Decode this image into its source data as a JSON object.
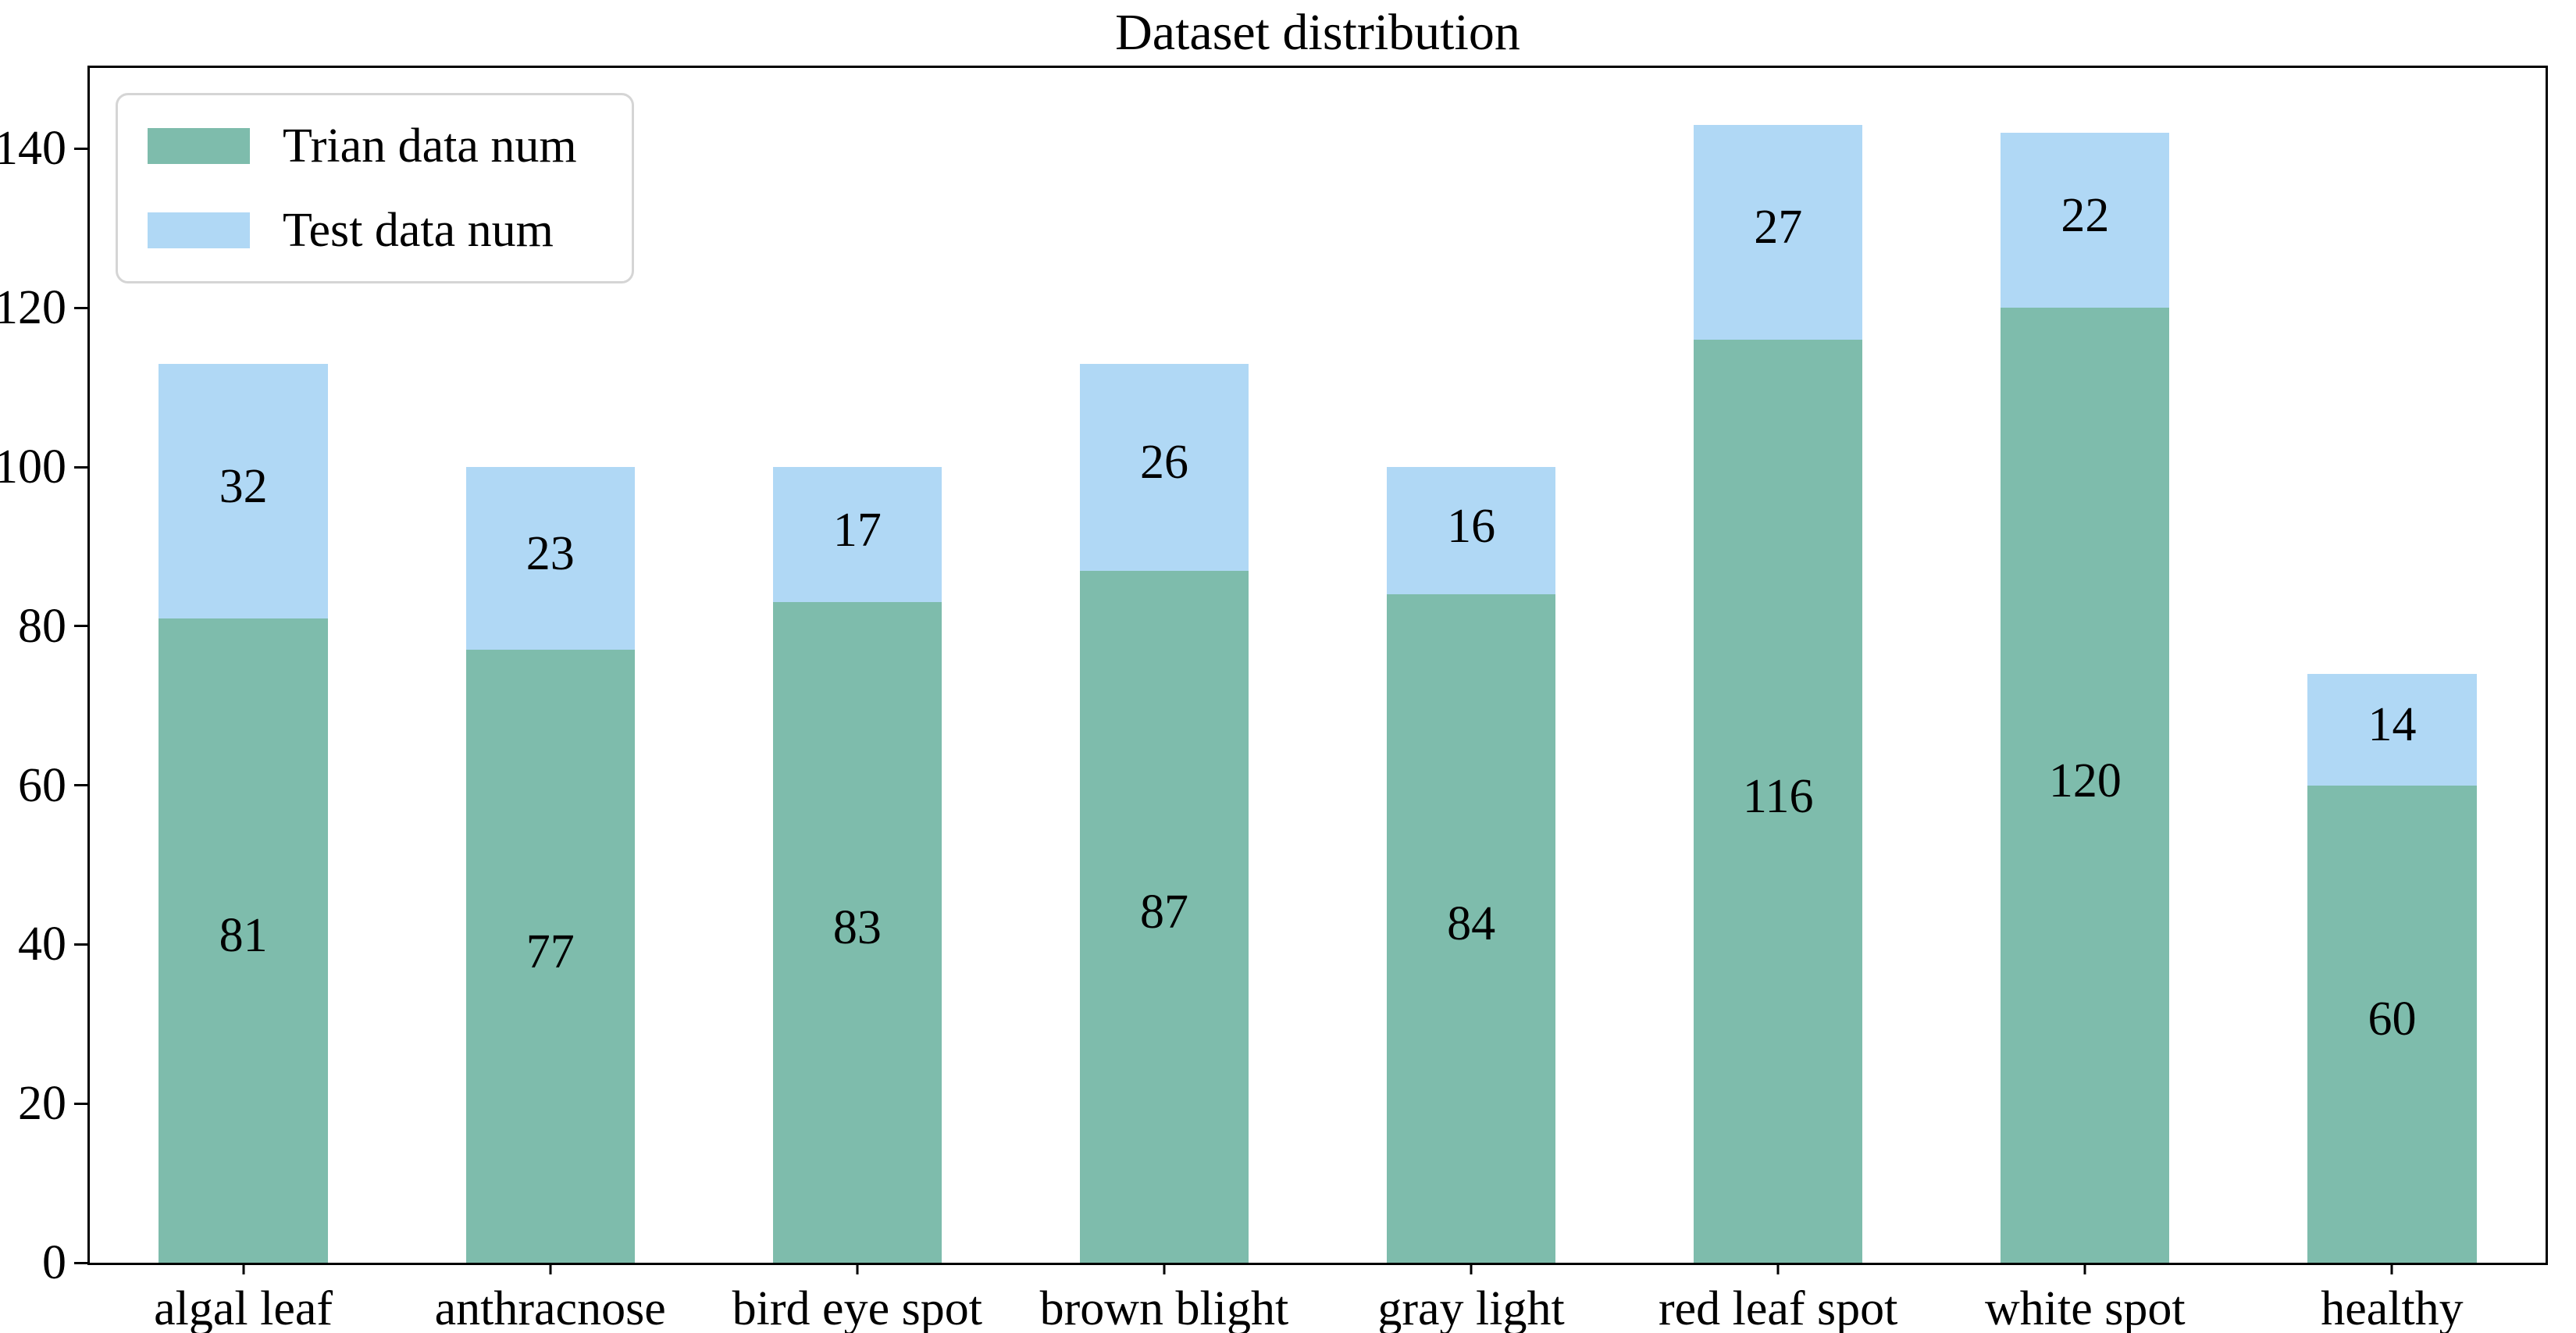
{
  "chart_data": {
    "type": "bar",
    "stacked": true,
    "title": "Dataset distribution",
    "categories": [
      "algal leaf",
      "anthracnose",
      "bird eye spot",
      "brown blight",
      "gray light",
      "red leaf spot",
      "white spot",
      "healthy"
    ],
    "series": [
      {
        "name": "Trian data num",
        "color": "#7ebcac",
        "values": [
          81,
          77,
          83,
          87,
          84,
          116,
          120,
          60
        ]
      },
      {
        "name": "Test data num",
        "color": "#b0d8f5",
        "values": [
          32,
          23,
          17,
          26,
          16,
          27,
          22,
          14
        ]
      }
    ],
    "bar_value_labels": true,
    "xlabel": "",
    "ylabel": "",
    "yticks": [
      0,
      20,
      40,
      60,
      80,
      100,
      120,
      140
    ],
    "ylim": [
      0,
      150.15
    ],
    "legend_position": "upper left",
    "grid": false,
    "colors": {
      "spine": "#000000",
      "text": "#000000",
      "legend_border": "#d5d5d5",
      "background": "#ffffff"
    }
  }
}
